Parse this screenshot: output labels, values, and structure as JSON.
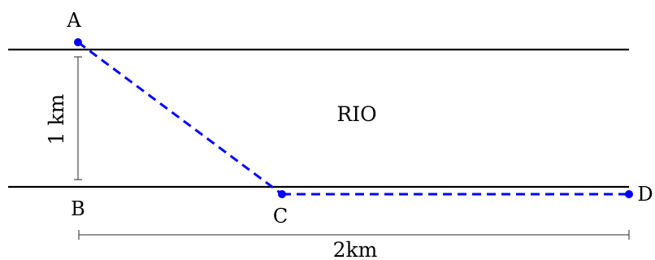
{
  "labels": {
    "point_a": "A",
    "point_b": "B",
    "point_c": "C",
    "point_d": "D",
    "river": "RIO",
    "width_measure": "1 km",
    "length_measure": "2km"
  },
  "colors": {
    "bank_line": "#000000",
    "path": "#0000ff",
    "dimension_line": "#555555",
    "text": "#000000"
  }
}
